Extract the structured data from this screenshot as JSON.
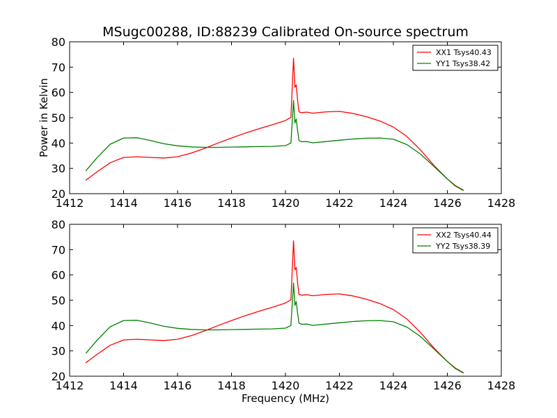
{
  "figure": {
    "title": "MSugc00288, ID:88239 Calibrated On-source spectrum",
    "xlabel": "Frequency (MHz)"
  },
  "chart_data": [
    {
      "type": "line",
      "title": "MSugc00288, ID:88239 Calibrated On-source spectrum",
      "xlabel": "",
      "ylabel": "Power in Kelvin",
      "xlim": [
        1412,
        1428
      ],
      "ylim": [
        20,
        80
      ],
      "xticks": [
        "1412",
        "1414",
        "1416",
        "1418",
        "1420",
        "1422",
        "1424",
        "1426",
        "1428"
      ],
      "yticks": [
        "20",
        "30",
        "40",
        "50",
        "60",
        "70",
        "80"
      ],
      "grid": false,
      "legend_position": "top-right",
      "series": [
        {
          "name": "XX1 Tsys40.43",
          "color": "#ff0000",
          "x": [
            1412.6,
            1413.0,
            1413.5,
            1414.0,
            1414.5,
            1415.0,
            1415.5,
            1416.0,
            1416.5,
            1417.0,
            1417.5,
            1418.0,
            1418.5,
            1419.0,
            1419.5,
            1420.0,
            1420.2,
            1420.3,
            1420.35,
            1420.4,
            1420.45,
            1420.5,
            1420.6,
            1420.8,
            1421.0,
            1421.5,
            1422.0,
            1422.5,
            1423.0,
            1423.5,
            1424.0,
            1424.5,
            1425.0,
            1425.5,
            1426.0,
            1426.3,
            1426.6
          ],
          "y": [
            25.3,
            28.5,
            32.2,
            34.3,
            34.6,
            34.3,
            34.1,
            34.6,
            36.0,
            37.9,
            40.0,
            42.0,
            43.9,
            45.6,
            47.2,
            48.9,
            50.2,
            73.5,
            62.0,
            63.0,
            57.0,
            52.3,
            52.0,
            52.2,
            51.8,
            52.3,
            52.5,
            51.7,
            50.4,
            48.7,
            46.3,
            42.6,
            37.3,
            31.2,
            25.8,
            23.2,
            21.4
          ]
        },
        {
          "name": "YY1 Tsys38.42",
          "color": "#008000",
          "x": [
            1412.6,
            1413.0,
            1413.5,
            1414.0,
            1414.5,
            1415.0,
            1415.5,
            1416.0,
            1416.5,
            1417.0,
            1417.5,
            1418.0,
            1418.5,
            1419.0,
            1419.5,
            1420.0,
            1420.2,
            1420.3,
            1420.35,
            1420.4,
            1420.45,
            1420.5,
            1420.6,
            1420.8,
            1421.0,
            1421.5,
            1422.0,
            1422.5,
            1423.0,
            1423.5,
            1424.0,
            1424.5,
            1425.0,
            1425.5,
            1426.0,
            1426.3,
            1426.6
          ],
          "y": [
            29.0,
            34.0,
            39.5,
            42.0,
            42.1,
            41.0,
            39.7,
            38.9,
            38.5,
            38.3,
            38.3,
            38.4,
            38.5,
            38.6,
            38.7,
            39.0,
            40.0,
            56.8,
            48.0,
            49.5,
            45.0,
            41.0,
            40.5,
            40.6,
            40.1,
            40.6,
            41.1,
            41.6,
            41.9,
            42.0,
            41.5,
            39.4,
            35.7,
            30.8,
            25.8,
            23.0,
            21.2
          ]
        }
      ]
    },
    {
      "type": "line",
      "title": "",
      "xlabel": "Frequency (MHz)",
      "ylabel": "",
      "xlim": [
        1412,
        1428
      ],
      "ylim": [
        20,
        80
      ],
      "xticks": [
        "1412",
        "1414",
        "1416",
        "1418",
        "1420",
        "1422",
        "1424",
        "1426",
        "1428"
      ],
      "yticks": [
        "20",
        "30",
        "40",
        "50",
        "60",
        "70",
        "80"
      ],
      "grid": false,
      "legend_position": "top-right",
      "series": [
        {
          "name": "XX2 Tsys40.44",
          "color": "#ff0000",
          "x": [
            1412.6,
            1413.0,
            1413.5,
            1414.0,
            1414.5,
            1415.0,
            1415.5,
            1416.0,
            1416.5,
            1417.0,
            1417.5,
            1418.0,
            1418.5,
            1419.0,
            1419.5,
            1420.0,
            1420.2,
            1420.3,
            1420.35,
            1420.4,
            1420.45,
            1420.5,
            1420.6,
            1420.8,
            1421.0,
            1421.5,
            1422.0,
            1422.5,
            1423.0,
            1423.5,
            1424.0,
            1424.5,
            1425.0,
            1425.5,
            1426.0,
            1426.3,
            1426.6
          ],
          "y": [
            25.3,
            28.5,
            32.2,
            34.3,
            34.6,
            34.3,
            34.1,
            34.6,
            36.0,
            37.9,
            40.0,
            42.0,
            43.9,
            45.6,
            47.2,
            48.9,
            50.2,
            73.5,
            62.0,
            63.0,
            57.0,
            52.3,
            52.0,
            52.2,
            51.8,
            52.3,
            52.5,
            51.7,
            50.4,
            48.7,
            46.3,
            42.6,
            37.3,
            31.2,
            25.8,
            23.2,
            21.4
          ]
        },
        {
          "name": "YY2 Tsys38.39",
          "color": "#008000",
          "x": [
            1412.6,
            1413.0,
            1413.5,
            1414.0,
            1414.5,
            1415.0,
            1415.5,
            1416.0,
            1416.5,
            1417.0,
            1417.5,
            1418.0,
            1418.5,
            1419.0,
            1419.5,
            1420.0,
            1420.2,
            1420.3,
            1420.35,
            1420.4,
            1420.45,
            1420.5,
            1420.6,
            1420.8,
            1421.0,
            1421.5,
            1422.0,
            1422.5,
            1423.0,
            1423.5,
            1424.0,
            1424.5,
            1425.0,
            1425.5,
            1426.0,
            1426.3,
            1426.6
          ],
          "y": [
            29.0,
            34.0,
            39.5,
            42.0,
            42.1,
            41.0,
            39.7,
            38.9,
            38.5,
            38.3,
            38.3,
            38.4,
            38.5,
            38.6,
            38.7,
            39.0,
            40.0,
            56.8,
            48.0,
            49.5,
            45.0,
            41.0,
            40.5,
            40.6,
            40.1,
            40.6,
            41.1,
            41.6,
            41.9,
            42.0,
            41.5,
            39.4,
            35.7,
            30.8,
            25.8,
            23.0,
            21.2
          ]
        }
      ]
    }
  ]
}
